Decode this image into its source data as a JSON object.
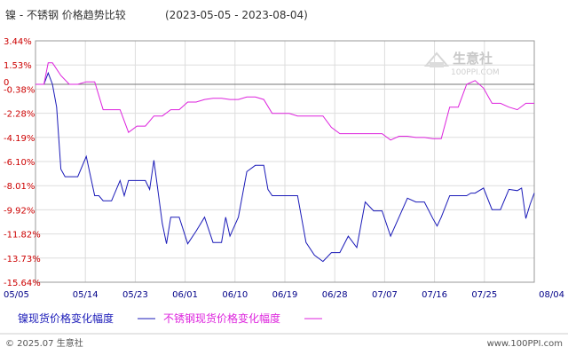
{
  "title": "镍 - 不锈钢 价格趋势比较",
  "date_range": "(2023-05-05 - 2023-08-04)",
  "watermark": {
    "name": "生意社",
    "url": "100PPI.COM"
  },
  "legend": {
    "nickel": "镍现货价格变化幅度",
    "steel": "不锈钢现货价格变化幅度"
  },
  "footer": {
    "left": "© 2025.07 生意社",
    "right": "www.100PPI.com"
  },
  "colors": {
    "nickel": "#1a1ab8",
    "steel": "#dd22dd",
    "axis_text": "#cc0000",
    "date_text": "#000088"
  },
  "chart_data": {
    "type": "line",
    "x_ticks": [
      "05/05",
      "05/14",
      "05/23",
      "06/01",
      "06/10",
      "06/19",
      "06/28",
      "07/07",
      "07/16",
      "07/25",
      "08/04"
    ],
    "y_ticks": [
      "3.44%",
      "1.53%",
      "-0.38%",
      "-2.28%",
      "-4.19%",
      "-6.10%",
      "-8.01%",
      "-9.92%",
      "-11.82%",
      "-13.73%",
      "-15.64%"
    ],
    "ylim": [
      -15.64,
      3.44
    ],
    "zero_label": "0",
    "xlabel": "",
    "ylabel": "",
    "series": [
      {
        "name": "镍现货价格变化幅度",
        "color": "#1a1ab8",
        "points": [
          [
            0,
            0
          ],
          [
            1,
            0
          ],
          [
            1.5,
            0.9
          ],
          [
            2,
            0
          ],
          [
            2.5,
            -1.8
          ],
          [
            3,
            -6.7
          ],
          [
            3.5,
            -7.3
          ],
          [
            5,
            -7.3
          ],
          [
            6,
            -5.7
          ],
          [
            7,
            -8.8
          ],
          [
            7.5,
            -8.8
          ],
          [
            8,
            -9.2
          ],
          [
            9,
            -9.2
          ],
          [
            10,
            -7.6
          ],
          [
            10.5,
            -8.8
          ],
          [
            11,
            -7.6
          ],
          [
            11.5,
            -7.6
          ],
          [
            12,
            -7.6
          ],
          [
            13,
            -7.6
          ],
          [
            13.5,
            -8.3
          ],
          [
            14,
            -6.0
          ],
          [
            15,
            -11.0
          ],
          [
            15.5,
            -12.6
          ],
          [
            16,
            -10.5
          ],
          [
            17,
            -10.5
          ],
          [
            18,
            -12.6
          ],
          [
            19,
            -11.6
          ],
          [
            20,
            -10.5
          ],
          [
            21,
            -12.5
          ],
          [
            22,
            -12.5
          ],
          [
            22.5,
            -10.5
          ],
          [
            23,
            -12.0
          ],
          [
            24,
            -10.5
          ],
          [
            25,
            -6.9
          ],
          [
            26,
            -6.4
          ],
          [
            27,
            -6.4
          ],
          [
            27.5,
            -8.3
          ],
          [
            28,
            -8.8
          ],
          [
            29,
            -8.8
          ],
          [
            30,
            -8.8
          ],
          [
            31,
            -8.8
          ],
          [
            32,
            -12.5
          ],
          [
            33,
            -13.5
          ],
          [
            34,
            -14.0
          ],
          [
            35,
            -13.3
          ],
          [
            36,
            -13.3
          ],
          [
            37,
            -12.0
          ],
          [
            38,
            -12.9
          ],
          [
            39,
            -9.3
          ],
          [
            40,
            -10.0
          ],
          [
            41,
            -10.0
          ],
          [
            42,
            -12.0
          ],
          [
            43,
            -10.5
          ],
          [
            44,
            -9.0
          ],
          [
            45,
            -9.3
          ],
          [
            46,
            -9.3
          ],
          [
            47,
            -10.6
          ],
          [
            47.5,
            -11.2
          ],
          [
            48,
            -10.5
          ],
          [
            49,
            -8.8
          ],
          [
            50,
            -8.8
          ],
          [
            51,
            -8.8
          ],
          [
            51.5,
            -8.6
          ],
          [
            52,
            -8.6
          ],
          [
            53,
            -8.2
          ],
          [
            54,
            -9.9
          ],
          [
            55,
            -9.9
          ],
          [
            56,
            -8.3
          ],
          [
            57,
            -8.4
          ],
          [
            57.5,
            -8.2
          ],
          [
            58,
            -10.6
          ],
          [
            58.5,
            -9.5
          ],
          [
            59,
            -8.6
          ]
        ]
      },
      {
        "name": "不锈钢现货价格变化幅度",
        "color": "#dd22dd",
        "points": [
          [
            0,
            0
          ],
          [
            1,
            0
          ],
          [
            1.5,
            1.7
          ],
          [
            2,
            1.7
          ],
          [
            3,
            0.7
          ],
          [
            4,
            0
          ],
          [
            5,
            0
          ],
          [
            6,
            0.2
          ],
          [
            7,
            0.2
          ],
          [
            8,
            -2.0
          ],
          [
            9,
            -2.0
          ],
          [
            10,
            -2.0
          ],
          [
            11,
            -3.8
          ],
          [
            12,
            -3.3
          ],
          [
            13,
            -3.3
          ],
          [
            14,
            -2.5
          ],
          [
            15,
            -2.5
          ],
          [
            16,
            -2.0
          ],
          [
            17,
            -2.0
          ],
          [
            18,
            -1.4
          ],
          [
            19,
            -1.4
          ],
          [
            20,
            -1.2
          ],
          [
            21,
            -1.1
          ],
          [
            22,
            -1.1
          ],
          [
            23,
            -1.2
          ],
          [
            24,
            -1.2
          ],
          [
            25,
            -1.0
          ],
          [
            26,
            -1.0
          ],
          [
            27,
            -1.2
          ],
          [
            28,
            -2.3
          ],
          [
            29,
            -2.3
          ],
          [
            30,
            -2.3
          ],
          [
            31,
            -2.5
          ],
          [
            32,
            -2.5
          ],
          [
            33,
            -2.5
          ],
          [
            34,
            -2.5
          ],
          [
            35,
            -3.4
          ],
          [
            36,
            -3.9
          ],
          [
            37,
            -3.9
          ],
          [
            38,
            -3.9
          ],
          [
            39,
            -3.9
          ],
          [
            40,
            -3.9
          ],
          [
            41,
            -3.9
          ],
          [
            42,
            -4.4
          ],
          [
            43,
            -4.1
          ],
          [
            44,
            -4.1
          ],
          [
            45,
            -4.2
          ],
          [
            46,
            -4.2
          ],
          [
            47,
            -4.3
          ],
          [
            48,
            -4.3
          ],
          [
            49,
            -1.8
          ],
          [
            50,
            -1.8
          ],
          [
            51,
            0
          ],
          [
            52,
            0.3
          ],
          [
            53,
            -0.3
          ],
          [
            54,
            -1.5
          ],
          [
            55,
            -1.5
          ],
          [
            56,
            -1.8
          ],
          [
            57,
            -2.0
          ],
          [
            58,
            -1.5
          ],
          [
            59,
            -1.5
          ]
        ]
      }
    ]
  }
}
